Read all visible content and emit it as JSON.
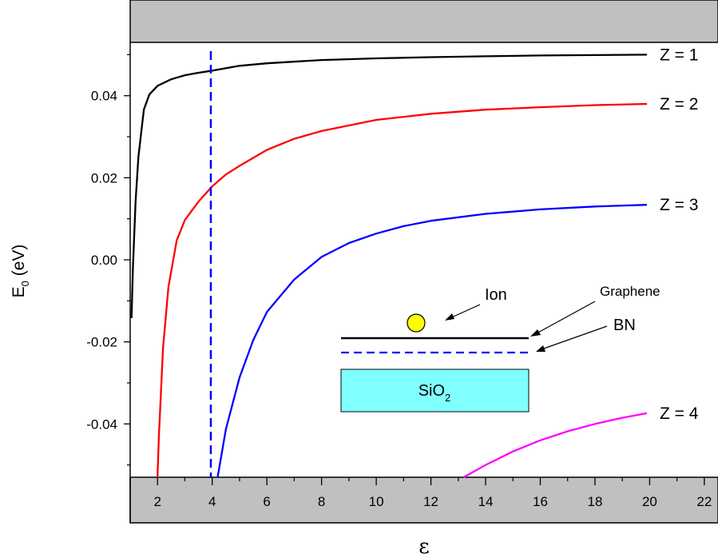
{
  "chart_data": {
    "type": "line",
    "title": "",
    "xlabel": "ε",
    "ylabel": "E",
    "ylabel_sub": "0",
    "ylabel_unit": " (eV)",
    "xlim": [
      1,
      22.5
    ],
    "ylim": [
      -0.053,
      0.053
    ],
    "x_ticks": [
      2,
      4,
      6,
      8,
      10,
      12,
      14,
      16,
      18,
      20,
      22
    ],
    "x_tick_labels": [
      "2",
      "4",
      "6",
      "8",
      "10",
      "12",
      "14",
      "16",
      "18",
      "20",
      "22"
    ],
    "y_ticks": [
      -0.04,
      -0.02,
      0.0,
      0.02,
      0.04
    ],
    "y_tick_labels": [
      "-0.04",
      "-0.02",
      "0.00",
      "0.02",
      "0.04"
    ],
    "grid": false,
    "series": [
      {
        "name": "Z = 1",
        "color": "#000000",
        "x": [
          1.05,
          1.1,
          1.2,
          1.3,
          1.5,
          1.7,
          2.0,
          2.5,
          3.0,
          3.5,
          4.0,
          5.0,
          6.0,
          8.0,
          10.0,
          12.0,
          14.0,
          16.0,
          18.0,
          19.9
        ],
        "y": [
          -0.0142,
          -0.0021,
          0.0144,
          0.0251,
          0.0366,
          0.0403,
          0.0424,
          0.044,
          0.045,
          0.0456,
          0.0461,
          0.0473,
          0.0479,
          0.0487,
          0.0491,
          0.0494,
          0.0496,
          0.0498,
          0.0499,
          0.05
        ]
      },
      {
        "name": "Z = 2",
        "color": "#ff0000",
        "x": [
          2.0,
          2.05,
          2.2,
          2.4,
          2.7,
          3.0,
          3.5,
          4.0,
          4.5,
          5.0,
          6.0,
          7.0,
          8.0,
          10.0,
          12.0,
          14.0,
          16.0,
          18.0,
          19.9
        ],
        "y": [
          -0.053,
          -0.0432,
          -0.0216,
          -0.0066,
          0.0047,
          0.0097,
          0.0142,
          0.0179,
          0.0208,
          0.0229,
          0.0268,
          0.0295,
          0.0314,
          0.0341,
          0.0356,
          0.0366,
          0.0372,
          0.0377,
          0.038
        ]
      },
      {
        "name": "Z = 3",
        "color": "#0000ff",
        "x": [
          4.2,
          4.5,
          5.0,
          5.5,
          6.0,
          7.0,
          8.0,
          9.0,
          10.0,
          11.0,
          12.0,
          14.0,
          16.0,
          18.0,
          19.9
        ],
        "y": [
          -0.053,
          -0.0413,
          -0.0287,
          -0.0196,
          -0.0127,
          -0.0048,
          0.0007,
          0.0041,
          0.0064,
          0.0082,
          0.0095,
          0.0112,
          0.0123,
          0.013,
          0.0134
        ]
      },
      {
        "name": "Z = 4",
        "color": "#ff00ff",
        "x": [
          13.2,
          14.0,
          15.0,
          16.0,
          17.0,
          18.0,
          19.0,
          19.9
        ],
        "y": [
          -0.053,
          -0.05,
          -0.0467,
          -0.044,
          -0.0418,
          -0.04,
          -0.0385,
          -0.0374
        ]
      }
    ],
    "vline": {
      "x": 3.95,
      "color": "#0000ff",
      "style": "dashed"
    },
    "inset": {
      "ion_label": "Ion",
      "graphene_label": "Graphene",
      "bn_label": "BN",
      "substrate_label": "SiO",
      "substrate_sub": "2",
      "ion_color": "#ffff00",
      "substrate_color": "#80ffff",
      "bn_color": "#0000ff"
    },
    "frame_color": "#c0c0c0"
  }
}
